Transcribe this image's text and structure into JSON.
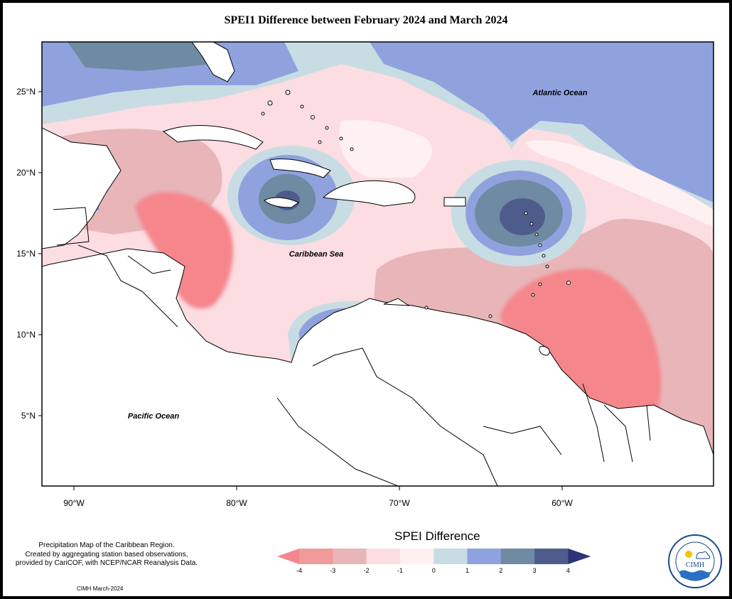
{
  "title": "SPEI1 Difference between February 2024 and March 2024",
  "axes": {
    "lat_labels": [
      "25°N",
      "20°N",
      "15°N",
      "10°N",
      "5°N"
    ],
    "lon_labels": [
      "90°W",
      "80°W",
      "70°W",
      "60°W"
    ]
  },
  "places": {
    "atlantic": "Atlantic Ocean",
    "caribbean": "Caribbean Sea",
    "pacific": "Pacific Ocean"
  },
  "note": {
    "line1": "Precipitation Map of the Caribbean Region.",
    "line2": "Created by aggregating station based observations,",
    "line3": "provided by CariCOF, with NCEP/NCAR Reanalysis Data."
  },
  "credit": "CIMH March-2024",
  "legend": {
    "title": "SPEI Difference",
    "ticks": [
      "-4",
      "-3",
      "-2",
      "-1",
      "0",
      "1",
      "2",
      "3",
      "4"
    ],
    "colors": [
      "#f5868c",
      "#f19a9c",
      "#e8b6b8",
      "#fbdde2",
      "#fff0f2",
      "#c8dde3",
      "#8fa2de",
      "#6f8aa3",
      "#4e5c8c",
      "#2c3578"
    ]
  },
  "logo": {
    "text": "CIMH",
    "ring_text": "Caribbean Institute for Meteorology and Hydrology"
  }
}
